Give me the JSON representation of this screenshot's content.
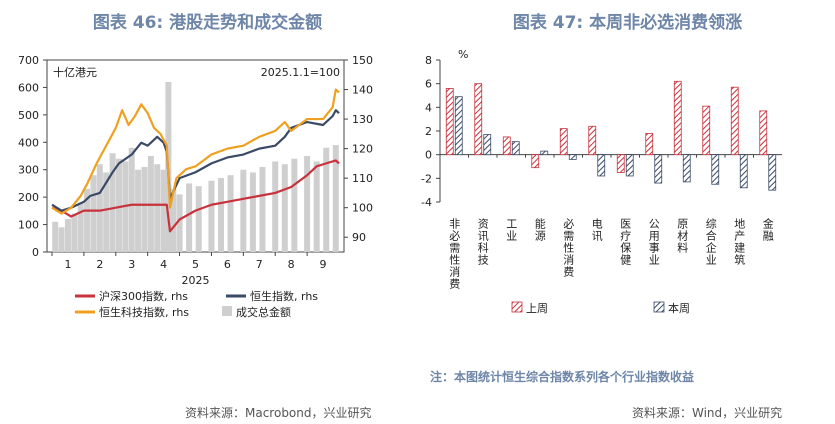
{
  "left_title": "图表 46: 港股走势和成交金额",
  "right_title": "图表 47: 本周非必选消费领涨",
  "left_source": "资料来源：Macrobond，兴业研究",
  "right_source": "资料来源：Wind，兴业研究",
  "right_note": "注：本图统计恒生综合指数系列各个行业指数收益",
  "colors": {
    "hs300": "#c8323c",
    "hsi": "#3a4a66",
    "hstech": "#f0a020",
    "turnover": "#cfcfcf",
    "last_week": "#c8323c",
    "this_week": "#3a4a66"
  },
  "chart_data": [
    {
      "type": "line",
      "title": "",
      "unit_left": "十亿港元",
      "unit_right": "2025.1.1=100",
      "xlabel": "2025",
      "x_ticks": [
        "1",
        "2",
        "3",
        "4",
        "5",
        "6",
        "7",
        "8",
        "9"
      ],
      "ylim_left": [
        0,
        700
      ],
      "yticks_left": [
        0,
        100,
        200,
        300,
        400,
        500,
        600,
        700
      ],
      "ylim_right": [
        85,
        150
      ],
      "yticks_right": [
        90,
        100,
        110,
        120,
        130,
        140,
        150
      ],
      "legend": [
        "沪深300指数, rhs",
        "恒生指数, rhs",
        "恒生科技指数, rhs",
        "成交总金额"
      ],
      "series": [
        {
          "name": "沪深300指数, rhs",
          "axis": "right",
          "x": [
            0.0,
            0.3,
            0.6,
            1.0,
            1.5,
            2.0,
            2.5,
            3.0,
            3.4,
            3.6,
            3.7,
            4.0,
            4.5,
            5.0,
            5.5,
            6.0,
            6.5,
            7.0,
            7.5,
            8.0,
            8.3,
            8.6,
            8.9,
            9.0
          ],
          "values": [
            100,
            99,
            97,
            99,
            99,
            100,
            101,
            101,
            101,
            101,
            92,
            96,
            99,
            101,
            102,
            103,
            104,
            105,
            107,
            111,
            114,
            115,
            116,
            115
          ]
        },
        {
          "name": "恒生指数, rhs",
          "axis": "right",
          "x": [
            0.0,
            0.3,
            0.6,
            1.0,
            1.2,
            1.5,
            1.9,
            2.1,
            2.5,
            2.8,
            3.0,
            3.3,
            3.5,
            3.6,
            3.7,
            4.0,
            4.5,
            5.0,
            5.5,
            6.0,
            6.5,
            7.0,
            7.3,
            7.5,
            8.0,
            8.5,
            8.8,
            8.9,
            9.0
          ],
          "values": [
            101,
            99,
            100,
            102,
            104,
            105,
            112,
            115,
            118,
            122,
            121,
            124,
            122,
            119,
            103,
            110,
            112,
            115,
            117,
            118,
            120,
            121,
            124,
            127,
            129,
            128,
            131,
            133,
            132
          ]
        },
        {
          "name": "恒生科技指数, rhs",
          "axis": "right",
          "x": [
            0.0,
            0.3,
            0.6,
            0.9,
            1.1,
            1.4,
            1.8,
            2.0,
            2.2,
            2.4,
            2.6,
            2.8,
            3.0,
            3.2,
            3.4,
            3.6,
            3.7,
            3.9,
            4.2,
            4.5,
            5.0,
            5.5,
            6.0,
            6.5,
            7.0,
            7.3,
            7.5,
            8.0,
            8.5,
            8.8,
            8.9,
            9.0
          ],
          "values": [
            100,
            98,
            100,
            104,
            108,
            115,
            123,
            127,
            133,
            128,
            131,
            135,
            132,
            127,
            125,
            121,
            100,
            110,
            113,
            114,
            118,
            120,
            121,
            124,
            126,
            129,
            126,
            130,
            130,
            134,
            140,
            139
          ]
        },
        {
          "name": "成交总金额",
          "axis": "left",
          "type": "bar",
          "x": [
            0.1,
            0.3,
            0.5,
            0.7,
            0.9,
            1.1,
            1.3,
            1.5,
            1.7,
            1.9,
            2.1,
            2.3,
            2.5,
            2.7,
            2.9,
            3.1,
            3.3,
            3.5,
            3.65,
            3.8,
            4.0,
            4.3,
            4.6,
            5.0,
            5.3,
            5.6,
            6.0,
            6.3,
            6.6,
            7.0,
            7.3,
            7.6,
            8.0,
            8.3,
            8.6,
            8.9
          ],
          "values": [
            110,
            90,
            120,
            140,
            180,
            230,
            280,
            320,
            290,
            360,
            340,
            330,
            380,
            300,
            310,
            350,
            320,
            300,
            620,
            230,
            210,
            250,
            240,
            260,
            270,
            280,
            300,
            290,
            310,
            330,
            320,
            340,
            350,
            330,
            380,
            390
          ]
        }
      ]
    },
    {
      "type": "bar",
      "title": "",
      "unit": "%",
      "ylim": [
        -4,
        8
      ],
      "yticks": [
        -4,
        -2,
        0,
        2,
        4,
        6,
        8
      ],
      "categories": [
        "非必需性消费",
        "资讯科技",
        "工业",
        "能源",
        "必需性消费",
        "电讯",
        "医疗保健",
        "公用事业",
        "原材料",
        "综合企业",
        "地产建筑",
        "金融"
      ],
      "series": [
        {
          "name": "上周",
          "values": [
            5.6,
            6.0,
            1.5,
            -1.1,
            2.2,
            2.4,
            -1.5,
            1.8,
            6.2,
            4.1,
            5.7,
            3.7
          ]
        },
        {
          "name": "本周",
          "values": [
            4.9,
            1.7,
            1.1,
            0.3,
            -0.4,
            -1.8,
            -1.8,
            -2.4,
            -2.3,
            -2.5,
            -2.8,
            -3.0
          ]
        }
      ]
    }
  ]
}
